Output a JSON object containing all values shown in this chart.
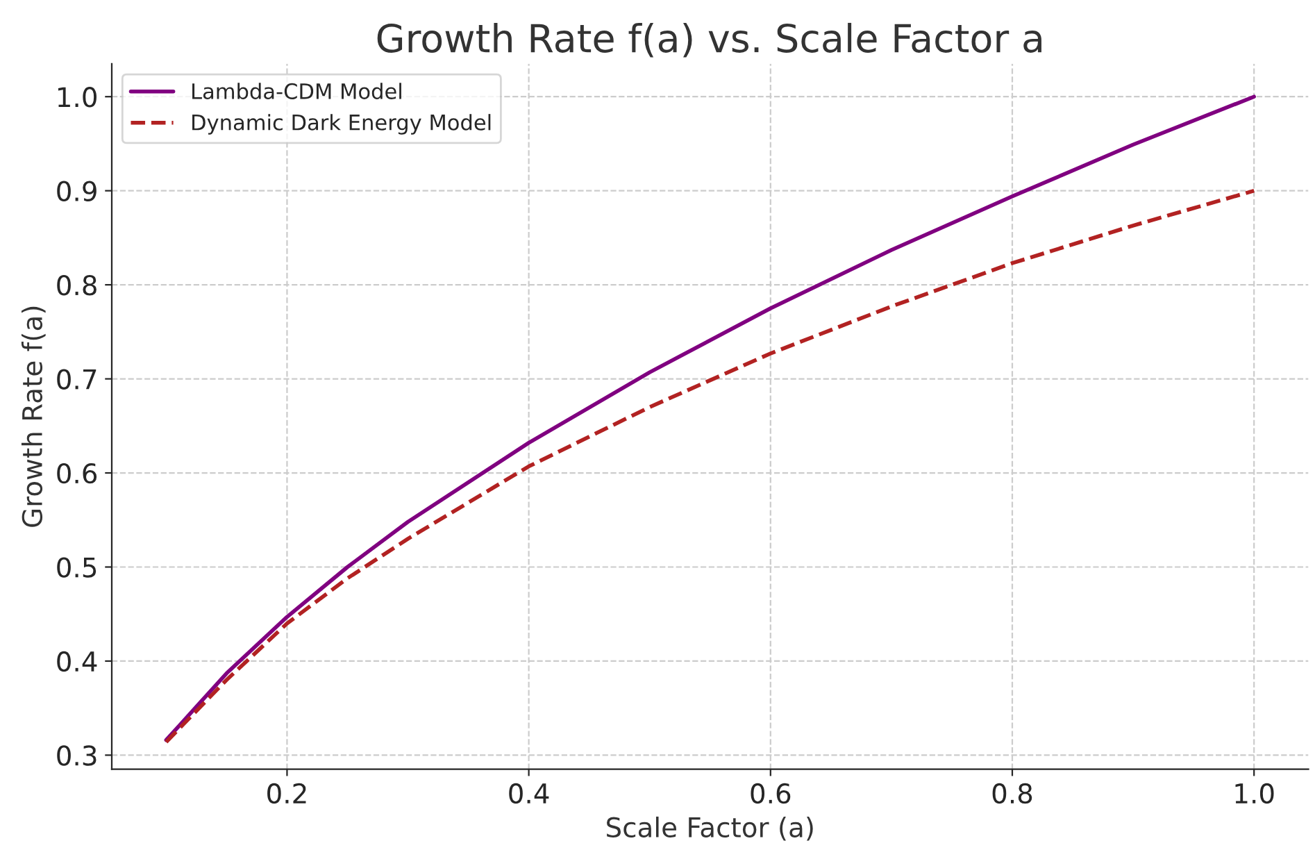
{
  "chart_data": {
    "type": "line",
    "title": "Growth Rate f(a) vs. Scale Factor a",
    "xlabel": "Scale Factor (a)",
    "ylabel": "Growth Rate f(a)",
    "x": [
      0.1,
      0.15,
      0.2,
      0.25,
      0.3,
      0.4,
      0.5,
      0.6,
      0.7,
      0.8,
      0.9,
      1.0
    ],
    "series": [
      {
        "name": "Lambda-CDM Model",
        "color": "#800080",
        "line_style": "solid",
        "values": [
          0.316,
          0.387,
          0.447,
          0.5,
          0.548,
          0.632,
          0.707,
          0.775,
          0.837,
          0.894,
          0.949,
          1.0
        ]
      },
      {
        "name": "Dynamic Dark Energy Model",
        "color": "#b22222",
        "line_style": "dashed",
        "values": [
          0.314,
          0.38,
          0.44,
          0.488,
          0.53,
          0.607,
          0.67,
          0.727,
          0.777,
          0.823,
          0.863,
          0.9
        ]
      }
    ],
    "xlim": [
      0.055,
      1.045
    ],
    "ylim": [
      0.285,
      1.035
    ],
    "xticks": [
      {
        "value": 0.2,
        "label": "0.2"
      },
      {
        "value": 0.4,
        "label": "0.4"
      },
      {
        "value": 0.6,
        "label": "0.6"
      },
      {
        "value": 0.8,
        "label": "0.8"
      },
      {
        "value": 1.0,
        "label": "1.0"
      }
    ],
    "yticks": [
      {
        "value": 0.3,
        "label": "0.3"
      },
      {
        "value": 0.4,
        "label": "0.4"
      },
      {
        "value": 0.5,
        "label": "0.5"
      },
      {
        "value": 0.6,
        "label": "0.6"
      },
      {
        "value": 0.7,
        "label": "0.7"
      },
      {
        "value": 0.8,
        "label": "0.8"
      },
      {
        "value": 0.9,
        "label": "0.9"
      },
      {
        "value": 1.0,
        "label": "1.0"
      }
    ],
    "grid": true,
    "legend": "top left"
  }
}
